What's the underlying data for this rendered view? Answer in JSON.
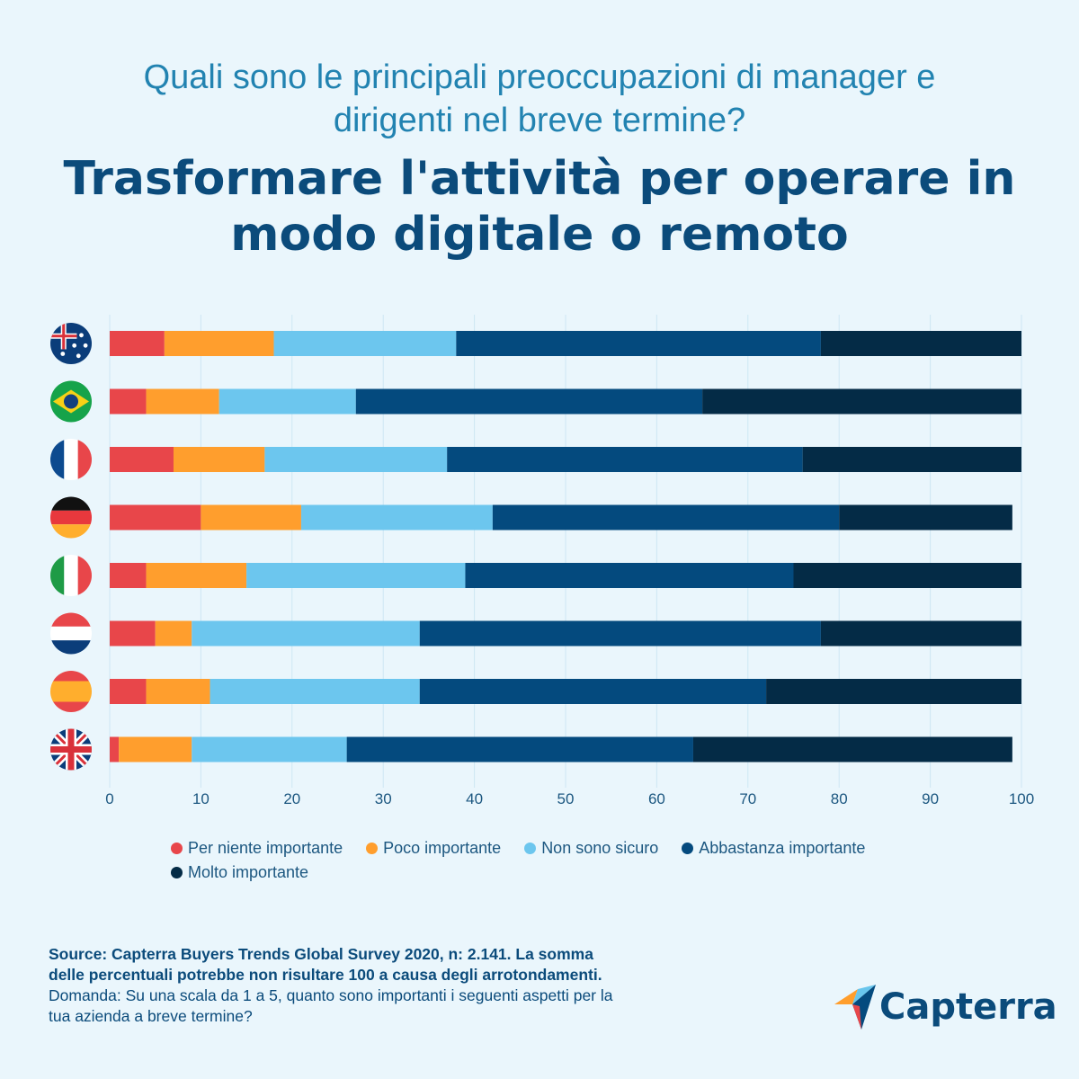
{
  "header": {
    "subtitle_line1": "Quali sono le principali preoccupazioni di manager e",
    "subtitle_line2": "dirigenti nel breve termine?",
    "title_line1": "Trasformare l'attività per operare in",
    "title_line2": "modo digitale o remoto"
  },
  "chart_data": {
    "type": "bar",
    "orientation": "horizontal",
    "stacked": true,
    "categories": [
      "Australia",
      "Brasile",
      "Francia",
      "Germania",
      "Italia",
      "Paesi Bassi",
      "Spagna",
      "Regno Unito"
    ],
    "series": [
      {
        "name": "Per niente importante",
        "color": "#e8464a",
        "values": [
          6,
          4,
          7,
          10,
          4,
          5,
          4,
          1
        ]
      },
      {
        "name": "Poco importante",
        "color": "#ff9e2d",
        "values": [
          12,
          8,
          10,
          11,
          11,
          4,
          7,
          8
        ]
      },
      {
        "name": "Non sono sicuro",
        "color": "#6cc6ee",
        "values": [
          20,
          15,
          20,
          21,
          24,
          25,
          23,
          17
        ]
      },
      {
        "name": "Abbastanza importante",
        "color": "#044a7e",
        "values": [
          40,
          38,
          39,
          38,
          36,
          44,
          38,
          38
        ]
      },
      {
        "name": "Molto importante",
        "color": "#042b46",
        "values": [
          22,
          35,
          24,
          19,
          25,
          22,
          28,
          35
        ]
      }
    ],
    "xlim": [
      0,
      100
    ],
    "xticks": [
      "0",
      "10",
      "20",
      "30",
      "40",
      "50",
      "60",
      "70",
      "80",
      "90",
      "100"
    ],
    "grid": true,
    "legend_position": "bottom",
    "flag_icons": [
      "australia-flag-icon",
      "brazil-flag-icon",
      "france-flag-icon",
      "germany-flag-icon",
      "italy-flag-icon",
      "netherlands-flag-icon",
      "spain-flag-icon",
      "uk-flag-icon"
    ]
  },
  "footer": {
    "source_line1": "Source: Capterra Buyers Trends Global Survey 2020, n: 2.141. La somma",
    "source_line2": "delle percentuali potrebbe non risultare 100 a causa degli arrotondamenti.",
    "question_line1": "Domanda: Su una scala da 1 a 5, quanto sono importanti i seguenti aspetti per la",
    "question_line2": "tua azienda a breve termine?"
  },
  "logo": {
    "text": "Capterra",
    "icon": "capterra-logo-icon"
  },
  "colors": {
    "background": "#eaf6fc",
    "title": "#0b4b7b",
    "subtitle": "#2283b1",
    "grid": "#cde7f3"
  }
}
